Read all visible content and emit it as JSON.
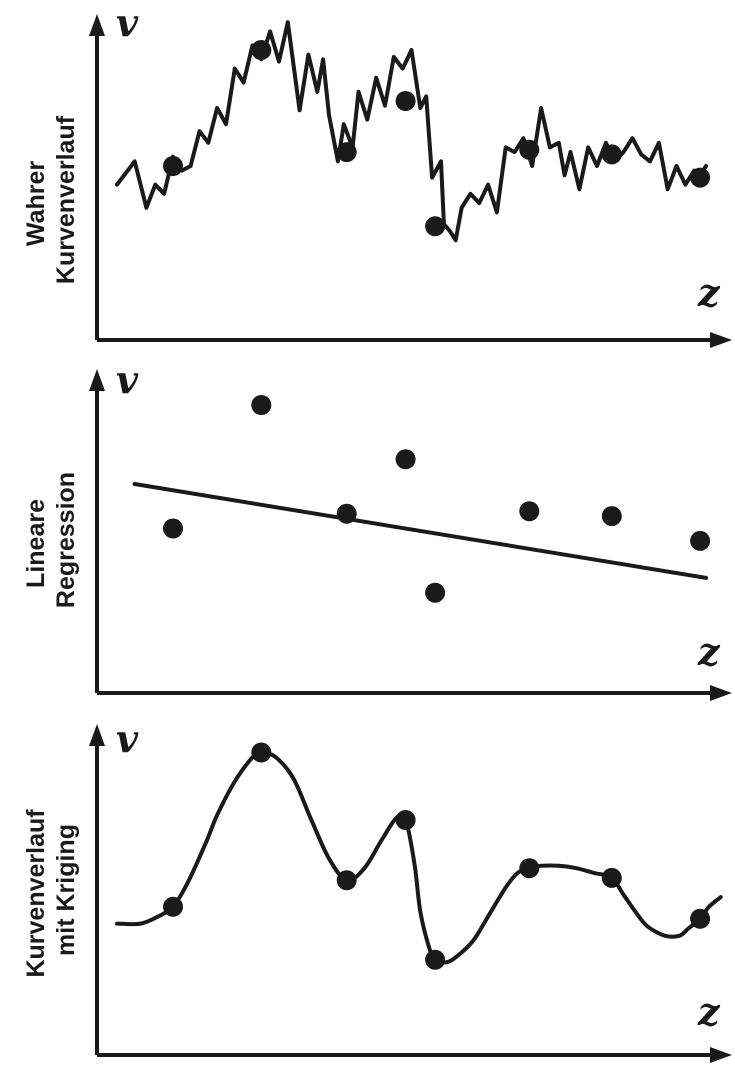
{
  "chart_data": [
    {
      "type": "line",
      "panel_label": [
        "Wahrer",
        "Kurvenverlauf"
      ],
      "xlabel": "z",
      "ylabel": "v",
      "xlim": [
        0,
        100
      ],
      "ylim": [
        0,
        100
      ],
      "grid": false,
      "line": {
        "x": [
          0,
          3,
          5,
          6.5,
          8,
          9.5,
          11,
          12.5,
          14,
          15.5,
          17,
          18.5,
          20,
          21.5,
          23,
          24.5,
          26,
          27.5,
          29,
          31,
          32.5,
          34,
          35,
          36,
          37.5,
          38.5,
          40,
          41,
          42.5,
          44,
          45.5,
          47,
          48.5,
          50,
          51.5,
          52.5,
          53.5,
          55,
          55.5,
          56.5,
          57.5,
          58.5,
          60,
          61.5,
          63,
          64.5,
          66,
          67.5,
          69,
          70.5,
          72,
          73.5,
          75,
          76,
          77,
          78.5,
          80,
          81.5,
          83,
          84.5,
          86,
          87.5,
          89,
          90.5,
          92,
          93.5,
          95,
          96.5,
          98,
          99,
          100
        ],
        "y": [
          42,
          52,
          32,
          42,
          38,
          54,
          48,
          50,
          65,
          60,
          75,
          68,
          92,
          86,
          102,
          96,
          108,
          95,
          112,
          74,
          98,
          82,
          96,
          72,
          52,
          68,
          58,
          82,
          70,
          88,
          76,
          97,
          92,
          100,
          75,
          80,
          45,
          52,
          25,
          22,
          18,
          32,
          38,
          34,
          42,
          30,
          58,
          56,
          62,
          50,
          75,
          58,
          60,
          46,
          56,
          40,
          58,
          50,
          60,
          52,
          56,
          62,
          55,
          52,
          60,
          40,
          50,
          42,
          48,
          46,
          50
        ]
      },
      "points": {
        "x": [
          9.5,
          24.5,
          39,
          49,
          54,
          70,
          84,
          99
        ],
        "y": [
          50,
          100,
          56,
          78,
          24,
          57,
          55,
          45
        ]
      }
    },
    {
      "type": "scatter",
      "panel_label": [
        "Lineare",
        "Regression"
      ],
      "xlabel": "z",
      "ylabel": "v",
      "xlim": [
        0,
        100
      ],
      "ylim": [
        0,
        100
      ],
      "grid": false,
      "points": {
        "x": [
          9.5,
          24.5,
          39,
          49,
          54,
          70,
          84,
          99
        ],
        "y": [
          50,
          100,
          56,
          78,
          24,
          57,
          55,
          45
        ]
      },
      "regression_line": {
        "x": [
          3,
          100
        ],
        "y": [
          68,
          30
        ]
      }
    },
    {
      "type": "line",
      "panel_label": [
        "Kurvenverlauf",
        "mit Kriging"
      ],
      "xlabel": "z",
      "ylabel": "v",
      "xlim": [
        0,
        100
      ],
      "ylim": [
        0,
        100
      ],
      "grid": false,
      "curve_x": [
        0,
        4,
        7,
        9.5,
        12,
        15,
        17,
        20,
        23,
        24.5,
        27,
        30,
        33,
        36,
        39,
        42,
        45,
        47.5,
        49,
        50.5,
        51.5,
        53,
        54,
        56,
        58,
        60.5,
        63,
        66,
        68,
        70,
        72,
        75,
        78,
        81,
        84,
        86,
        88,
        90,
        93,
        95.5,
        97,
        99,
        100.5,
        102.5
      ],
      "curve_y": [
        35,
        35,
        38,
        42,
        52,
        68,
        80,
        94,
        104,
        106,
        104,
        95,
        78,
        62,
        53,
        58,
        70,
        79,
        78,
        60,
        40,
        25,
        20,
        19,
        22,
        28,
        38,
        50,
        56,
        58,
        59,
        59,
        58,
        56,
        54,
        47,
        40,
        34,
        30,
        30,
        33,
        37,
        42,
        46
      ],
      "points": {
        "x": [
          9.5,
          24.5,
          39,
          49,
          54,
          70,
          84,
          99
        ],
        "y": [
          42,
          106,
          53,
          78,
          20,
          58,
          54,
          37
        ]
      }
    }
  ]
}
